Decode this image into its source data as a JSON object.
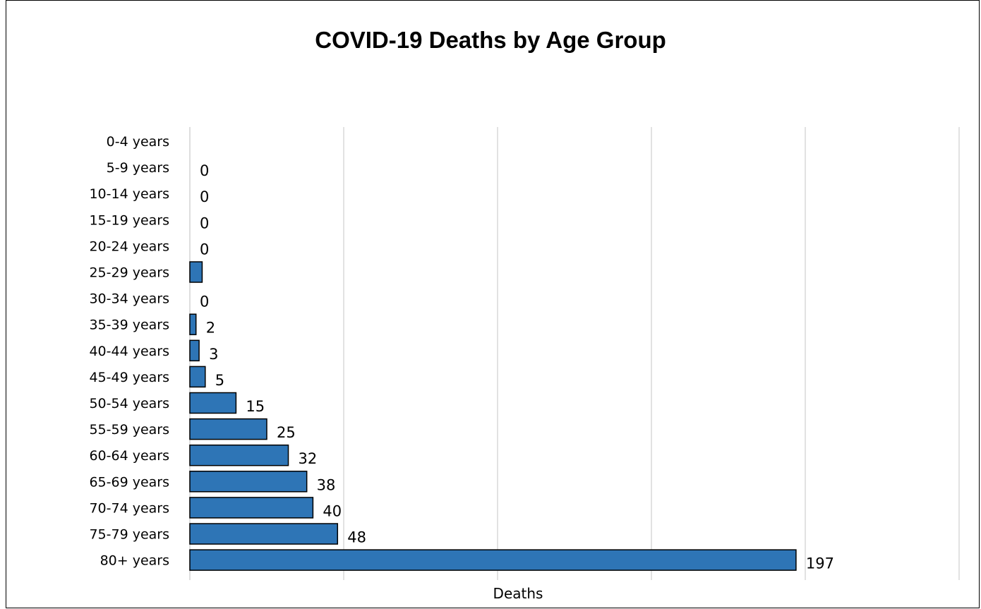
{
  "chart_data": {
    "type": "bar",
    "orientation": "horizontal",
    "title": "COVID-19 Deaths by Age Group",
    "xlabel": "Deaths",
    "ylabel": "",
    "categories": [
      "0-4 years",
      "5-9 years",
      "10-14 years",
      "15-19 years",
      "20-24 years",
      "25-29 years",
      "30-34 years",
      "35-39 years",
      "40-44 years",
      "45-49 years",
      "50-54 years",
      "55-59 years",
      "60-64 years",
      "65-69 years",
      "70-74 years",
      "75-79 years",
      "80+ years"
    ],
    "values": [
      null,
      0,
      0,
      0,
      0,
      4,
      0,
      2,
      3,
      5,
      15,
      25,
      32,
      38,
      40,
      48,
      197
    ],
    "data_labels": [
      "",
      "0",
      "0",
      "0",
      "0",
      "",
      "0",
      "2",
      "3",
      "5",
      "15",
      "25",
      "32",
      "38",
      "40",
      "48",
      "197"
    ],
    "xlim": [
      0,
      250
    ],
    "grid": true,
    "legend": "none",
    "bar_color": "#2E75B6",
    "bar_edge_color": "#000000"
  }
}
